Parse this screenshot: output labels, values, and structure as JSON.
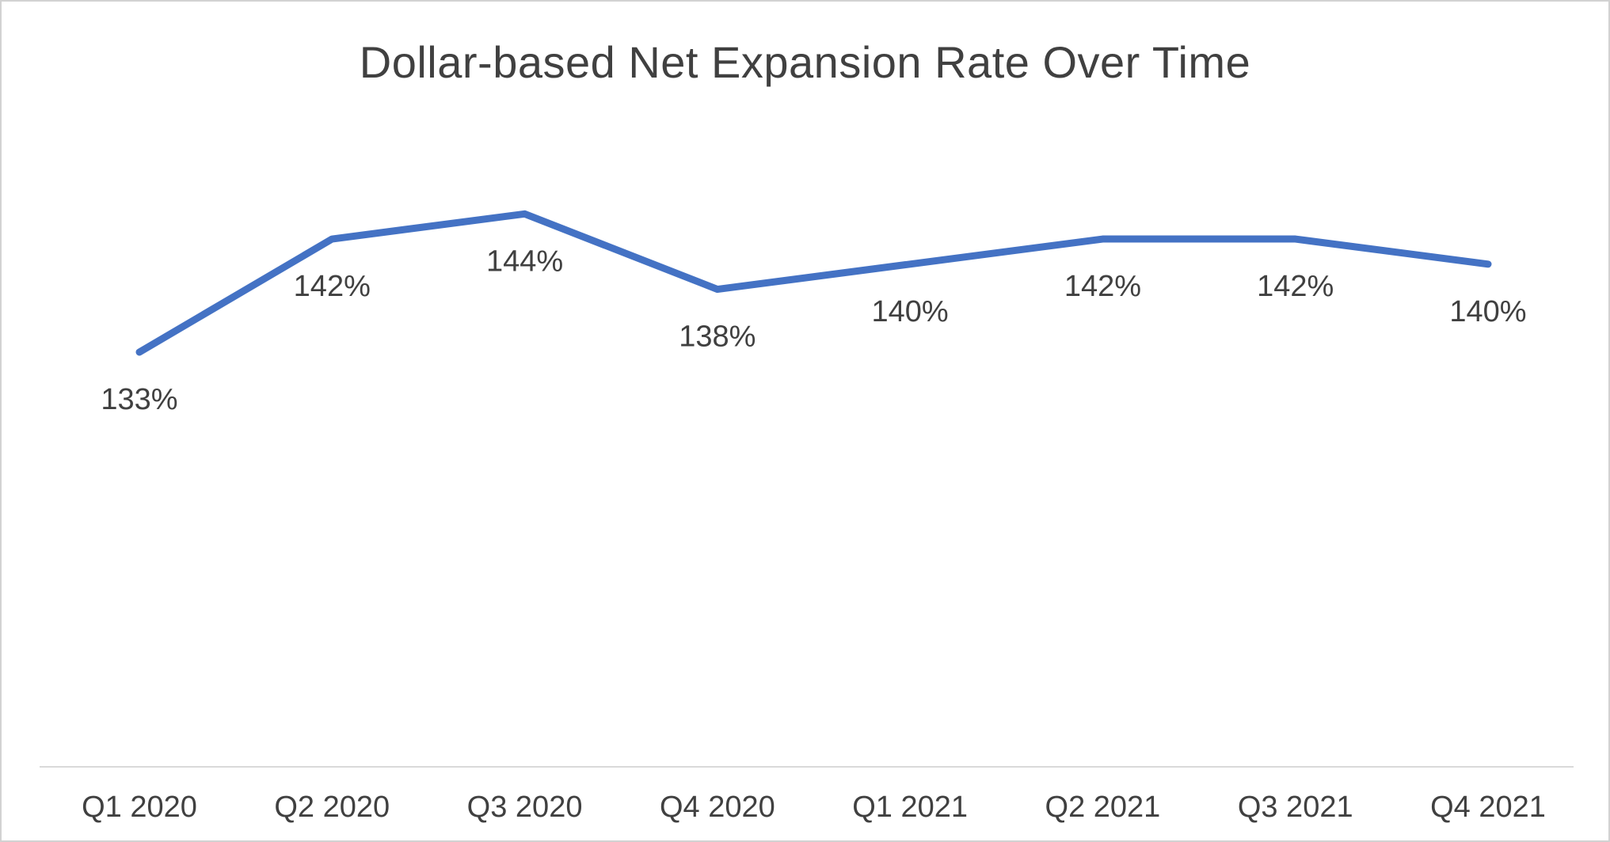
{
  "chart_data": {
    "type": "line",
    "title": "Dollar-based Net Expansion Rate Over Time",
    "categories": [
      "Q1 2020",
      "Q2 2020",
      "Q3 2020",
      "Q4 2020",
      "Q1 2021",
      "Q2 2021",
      "Q3 2021",
      "Q4 2021"
    ],
    "series": [
      {
        "name": "Dollar-based Net Expansion Rate",
        "values": [
          133,
          142,
          144,
          138,
          140,
          142,
          142,
          140
        ]
      }
    ],
    "data_labels": [
      "133%",
      "142%",
      "144%",
      "138%",
      "140%",
      "142%",
      "142%",
      "140%"
    ],
    "xlabel": "",
    "ylabel": "",
    "ylim": [
      100,
      150
    ],
    "y_axis_visible": false,
    "grid": false,
    "legend": "none",
    "line_color": "#4472C4",
    "text_color": "#404040",
    "axis_line_color": "#d9d9d9"
  }
}
